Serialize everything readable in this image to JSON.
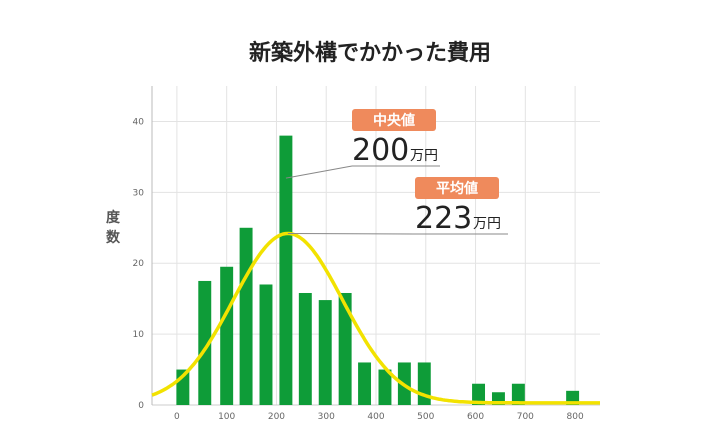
{
  "chart_data": {
    "type": "bar",
    "title": "新築外構でかかった費用",
    "ylabel": "度数",
    "xlabel": "",
    "xlim": [
      -50,
      850
    ],
    "ylim": [
      0,
      45
    ],
    "x_ticks": [
      0,
      100,
      200,
      300,
      400,
      500,
      600,
      700,
      800
    ],
    "y_ticks": [
      0,
      10,
      20,
      30,
      40
    ],
    "grid": true,
    "bars": [
      {
        "x": 12,
        "value": 5
      },
      {
        "x": 56,
        "value": 17.5
      },
      {
        "x": 100,
        "value": 19.5
      },
      {
        "x": 139,
        "value": 25
      },
      {
        "x": 179,
        "value": 17
      },
      {
        "x": 219,
        "value": 38
      },
      {
        "x": 258,
        "value": 15.8
      },
      {
        "x": 298,
        "value": 14.8
      },
      {
        "x": 338,
        "value": 15.8
      },
      {
        "x": 377,
        "value": 6
      },
      {
        "x": 418,
        "value": 5
      },
      {
        "x": 457,
        "value": 6
      },
      {
        "x": 497,
        "value": 6
      },
      {
        "x": 606,
        "value": 3
      },
      {
        "x": 646,
        "value": 1.8
      },
      {
        "x": 686,
        "value": 3
      },
      {
        "x": 795,
        "value": 2
      }
    ],
    "bar_color": "#0e9c38",
    "curve": {
      "type": "normal-fit",
      "mean": 223,
      "peak": 24.2,
      "sigma": 110,
      "floor": 0.3,
      "color": "#f2e200"
    },
    "annotations": [
      {
        "id": "median",
        "badge": "中央値",
        "number": "200",
        "unit": "万円",
        "point": {
          "x": 219,
          "y": 32
        }
      },
      {
        "id": "mean",
        "badge": "平均値",
        "number": "223",
        "unit": "万円",
        "point": {
          "x": 223,
          "y": 24.2
        }
      }
    ],
    "badge_color": "#ef8a5c"
  }
}
